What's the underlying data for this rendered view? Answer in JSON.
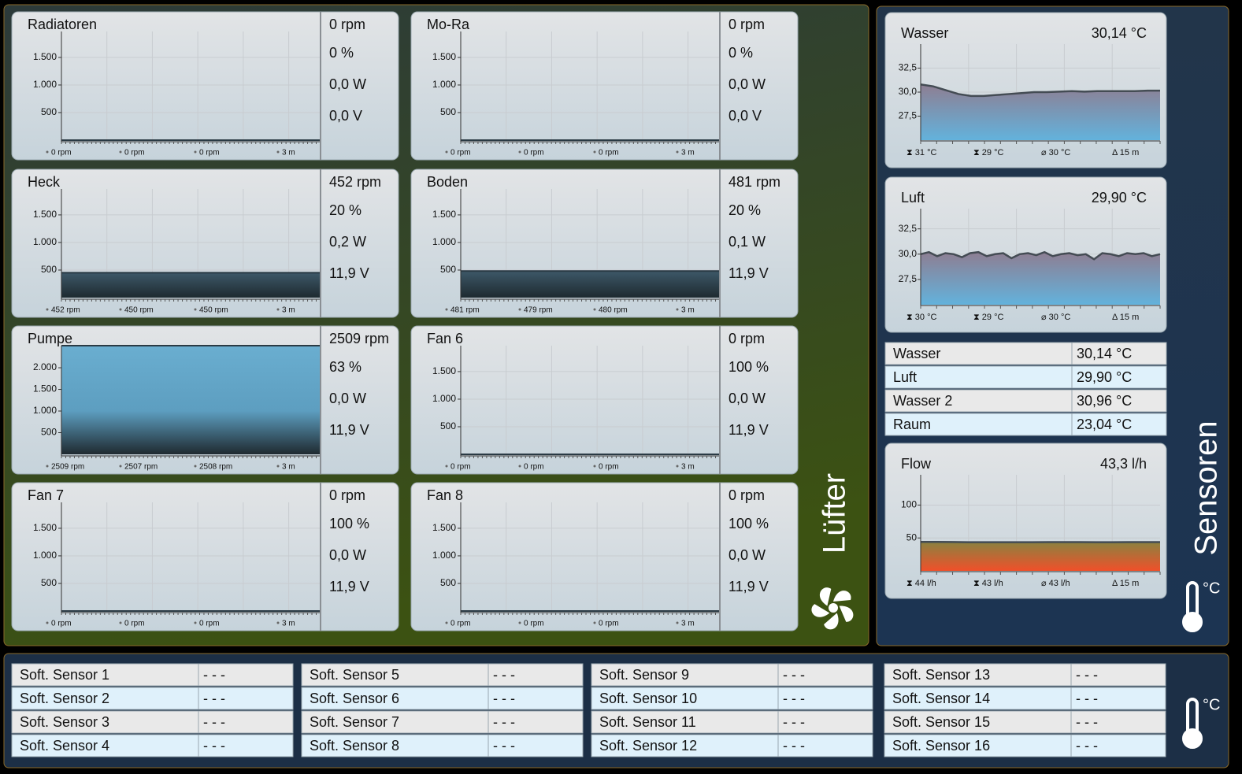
{
  "fan_section": {
    "label": "Lüfter",
    "fans": [
      {
        "name": "Radiatoren",
        "rpm": "0 rpm",
        "percent": "0 %",
        "power": "0,0 W",
        "voltage": "0,0 V",
        "plot": {
          "ylim": [
            0,
            1970
          ],
          "yticks": [
            500,
            {
              "value": 1000,
              "label": "1.000"
            },
            {
              "value": 1500,
              "label": "1.500"
            }
          ],
          "level": 0
        },
        "footer": [
          "0 rpm",
          "0 rpm",
          "0 rpm",
          "3 m"
        ]
      },
      {
        "name": "Mo-Ra",
        "rpm": "0 rpm",
        "percent": "0 %",
        "power": "0,0 W",
        "voltage": "0,0 V",
        "plot": {
          "ylim": [
            0,
            1970
          ],
          "yticks": [
            500,
            {
              "value": 1000,
              "label": "1.000"
            },
            {
              "value": 1500,
              "label": "1.500"
            }
          ],
          "level": 0
        },
        "footer": [
          "0 rpm",
          "0 rpm",
          "0 rpm",
          "3 m"
        ]
      },
      {
        "name": "Heck",
        "rpm": "452 rpm",
        "percent": "20 %",
        "power": "0,2 W",
        "voltage": "11,9 V",
        "plot": {
          "ylim": [
            0,
            1970
          ],
          "yticks": [
            500,
            {
              "value": 1000,
              "label": "1.000"
            },
            {
              "value": 1500,
              "label": "1.500"
            }
          ],
          "level": 452
        },
        "footer": [
          "452 rpm",
          "450 rpm",
          "450 rpm",
          "3 m"
        ]
      },
      {
        "name": "Boden",
        "rpm": "481 rpm",
        "percent": "20 %",
        "power": "0,1 W",
        "voltage": "11,9 V",
        "plot": {
          "ylim": [
            0,
            1970
          ],
          "yticks": [
            500,
            {
              "value": 1000,
              "label": "1.000"
            },
            {
              "value": 1500,
              "label": "1.500"
            }
          ],
          "level": 481
        },
        "footer": [
          "481 rpm",
          "479 rpm",
          "480 rpm",
          "3 m"
        ]
      },
      {
        "name": "Pumpe",
        "rpm": "2509 rpm",
        "percent": "63 %",
        "power": "0,0 W",
        "voltage": "11,9 V",
        "plot": {
          "ylim": [
            0,
            2510
          ],
          "yticks": [
            500,
            {
              "value": 1000,
              "label": "1.000"
            },
            {
              "value": 1500,
              "label": "1.500"
            },
            {
              "value": 2000,
              "label": "2.000"
            }
          ],
          "level": 2509
        },
        "footer": [
          "2509 rpm",
          "2507 rpm",
          "2508 rpm",
          "3 m"
        ]
      },
      {
        "name": "Fan 6",
        "rpm": "0 rpm",
        "percent": "100 %",
        "power": "0,0 W",
        "voltage": "11,9 V",
        "plot": {
          "ylim": [
            0,
            1970
          ],
          "yticks": [
            500,
            {
              "value": 1000,
              "label": "1.000"
            },
            {
              "value": 1500,
              "label": "1.500"
            }
          ],
          "level": 0
        },
        "footer": [
          "0 rpm",
          "0 rpm",
          "0 rpm",
          "3 m"
        ]
      },
      {
        "name": "Fan 7",
        "rpm": "0 rpm",
        "percent": "100 %",
        "power": "0,0 W",
        "voltage": "11,9 V",
        "plot": {
          "ylim": [
            0,
            1970
          ],
          "yticks": [
            500,
            {
              "value": 1000,
              "label": "1.000"
            },
            {
              "value": 1500,
              "label": "1.500"
            }
          ],
          "level": 0
        },
        "footer": [
          "0 rpm",
          "0 rpm",
          "0 rpm",
          "3 m"
        ]
      },
      {
        "name": "Fan 8",
        "rpm": "0 rpm",
        "percent": "100 %",
        "power": "0,0 W",
        "voltage": "11,9 V",
        "plot": {
          "ylim": [
            0,
            1970
          ],
          "yticks": [
            500,
            {
              "value": 1000,
              "label": "1.000"
            },
            {
              "value": 1500,
              "label": "1.500"
            }
          ],
          "level": 0
        },
        "footer": [
          "0 rpm",
          "0 rpm",
          "0 rpm",
          "3 m"
        ]
      }
    ]
  },
  "sensor_section": {
    "label": "Sensoren",
    "unit_icon": "°C",
    "charts": [
      {
        "title": "Wasser",
        "value": "30,14 °C",
        "style": "temp",
        "ylim": [
          25,
          35
        ],
        "yticks": [
          {
            "value": 27.5,
            "label": "27,5"
          },
          {
            "value": 30,
            "label": "30,0"
          },
          {
            "value": 32.5,
            "label": "32,5"
          }
        ],
        "values": [
          30.8,
          30.6,
          30.2,
          29.8,
          29.6,
          29.6,
          29.7,
          29.8,
          29.9,
          30.0,
          30.0,
          30.05,
          30.1,
          30.05,
          30.1,
          30.1,
          30.1,
          30.1,
          30.15,
          30.15
        ],
        "footer": [
          "⧗ 31 °C",
          "⧗ 29 °C",
          "⌀ 30 °C",
          "Δ 15 m"
        ]
      },
      {
        "title": "Luft",
        "value": "29,90 °C",
        "style": "temp",
        "ylim": [
          25,
          34.5
        ],
        "yticks": [
          {
            "value": 27.5,
            "label": "27,5"
          },
          {
            "value": 30,
            "label": "30,0"
          },
          {
            "value": 32.5,
            "label": "32,5"
          }
        ],
        "values": [
          30.0,
          30.2,
          29.8,
          30.1,
          30.0,
          29.7,
          30.1,
          30.2,
          29.8,
          30.0,
          30.1,
          29.6,
          30.0,
          30.1,
          29.9,
          30.2,
          29.8,
          30.0,
          30.1,
          29.9,
          30.0,
          29.5,
          30.1,
          30.0,
          29.8,
          30.1,
          30.0,
          30.1,
          29.8,
          30.0
        ],
        "footer": [
          "⧗ 30 °C",
          "⧗ 29 °C",
          "⌀ 30 °C",
          "Δ 15 m"
        ]
      },
      {
        "title": "Flow",
        "value": "43,3 l/h",
        "style": "flow",
        "ylim": [
          0,
          146
        ],
        "yticks": [
          50,
          100
        ],
        "values": [
          44,
          44,
          43.8,
          43.6,
          43.5,
          43.5,
          43.6,
          43.6,
          43.7,
          43.7,
          43.7,
          43.6,
          43.6,
          43.7,
          43.7,
          43.7
        ],
        "footer": [
          "⧗ 44 l/h",
          "⧗ 43 l/h",
          "⌀ 43 l/h",
          "Δ 15 m"
        ]
      }
    ],
    "table": [
      [
        "Wasser",
        "30,14 °C"
      ],
      [
        "Luft",
        "29,90 °C"
      ],
      [
        "Wasser 2",
        "30,96 °C"
      ],
      [
        "Raum",
        "23,04 °C"
      ]
    ]
  },
  "soft_sensors": {
    "unit_icon": "°C",
    "rows": [
      [
        "Soft. Sensor 1",
        "- - -"
      ],
      [
        "Soft. Sensor 2",
        "- - -"
      ],
      [
        "Soft. Sensor 3",
        "- - -"
      ],
      [
        "Soft. Sensor 4",
        "- - -"
      ],
      [
        "Soft. Sensor 5",
        "- - -"
      ],
      [
        "Soft. Sensor 6",
        "- - -"
      ],
      [
        "Soft. Sensor 7",
        "- - -"
      ],
      [
        "Soft. Sensor 8",
        "- - -"
      ],
      [
        "Soft. Sensor 9",
        "- - -"
      ],
      [
        "Soft. Sensor 10",
        "- - -"
      ],
      [
        "Soft. Sensor 11",
        "- - -"
      ],
      [
        "Soft. Sensor 12",
        "- - -"
      ],
      [
        "Soft. Sensor 13",
        "- - -"
      ],
      [
        "Soft. Sensor 14",
        "- - -"
      ],
      [
        "Soft. Sensor 15",
        "- - -"
      ],
      [
        "Soft. Sensor 16",
        "- - -"
      ]
    ]
  }
}
